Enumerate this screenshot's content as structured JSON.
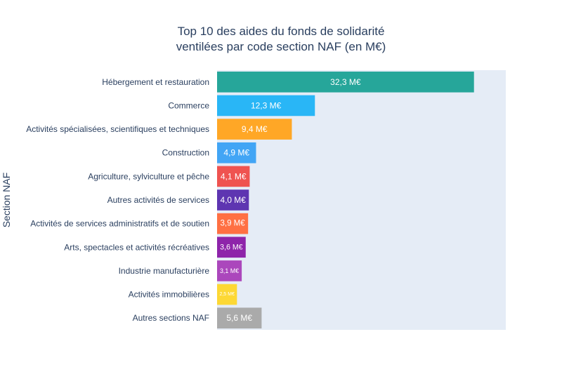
{
  "chart_data": {
    "type": "bar",
    "orientation": "horizontal",
    "title_line1": "Top 10 des aides du fonds de solidarité",
    "title_line2": "ventilées par code section NAF (en M€)",
    "ylabel": "Section NAF",
    "xlabel": "",
    "xlim": [
      0,
      36.3
    ],
    "grid": false,
    "legend": "none",
    "plot_bg": "#e5ecf6",
    "categories": [
      "Hébergement et restauration",
      "Commerce",
      "Activités spécialisées, scientifiques et techniques",
      "Construction",
      "Agriculture, sylviculture et pêche",
      "Autres activités de services",
      "Activités de services administratifs et de soutien",
      "Arts, spectacles et activités récréatives",
      "Industrie manufacturière",
      "Activités immobilières",
      "Autres sections NAF"
    ],
    "values": [
      32.3,
      12.3,
      9.4,
      4.9,
      4.1,
      4.0,
      3.9,
      3.6,
      3.1,
      2.5,
      5.6
    ],
    "labels": [
      "32,3 M€",
      "12,3 M€",
      "9,4 M€",
      "4,9 M€",
      "4,1 M€",
      "4,0 M€",
      "3,9 M€",
      "3,6 M€",
      "3,1 M€",
      "2,5 M€",
      "5,6 M€"
    ],
    "colors": [
      "#26a69a",
      "#29b6f6",
      "#ffa726",
      "#42a5f5",
      "#ef5350",
      "#5e35b1",
      "#ff7043",
      "#8e24aa",
      "#ab47bc",
      "#fdd835",
      "#aaaaaa"
    ]
  }
}
